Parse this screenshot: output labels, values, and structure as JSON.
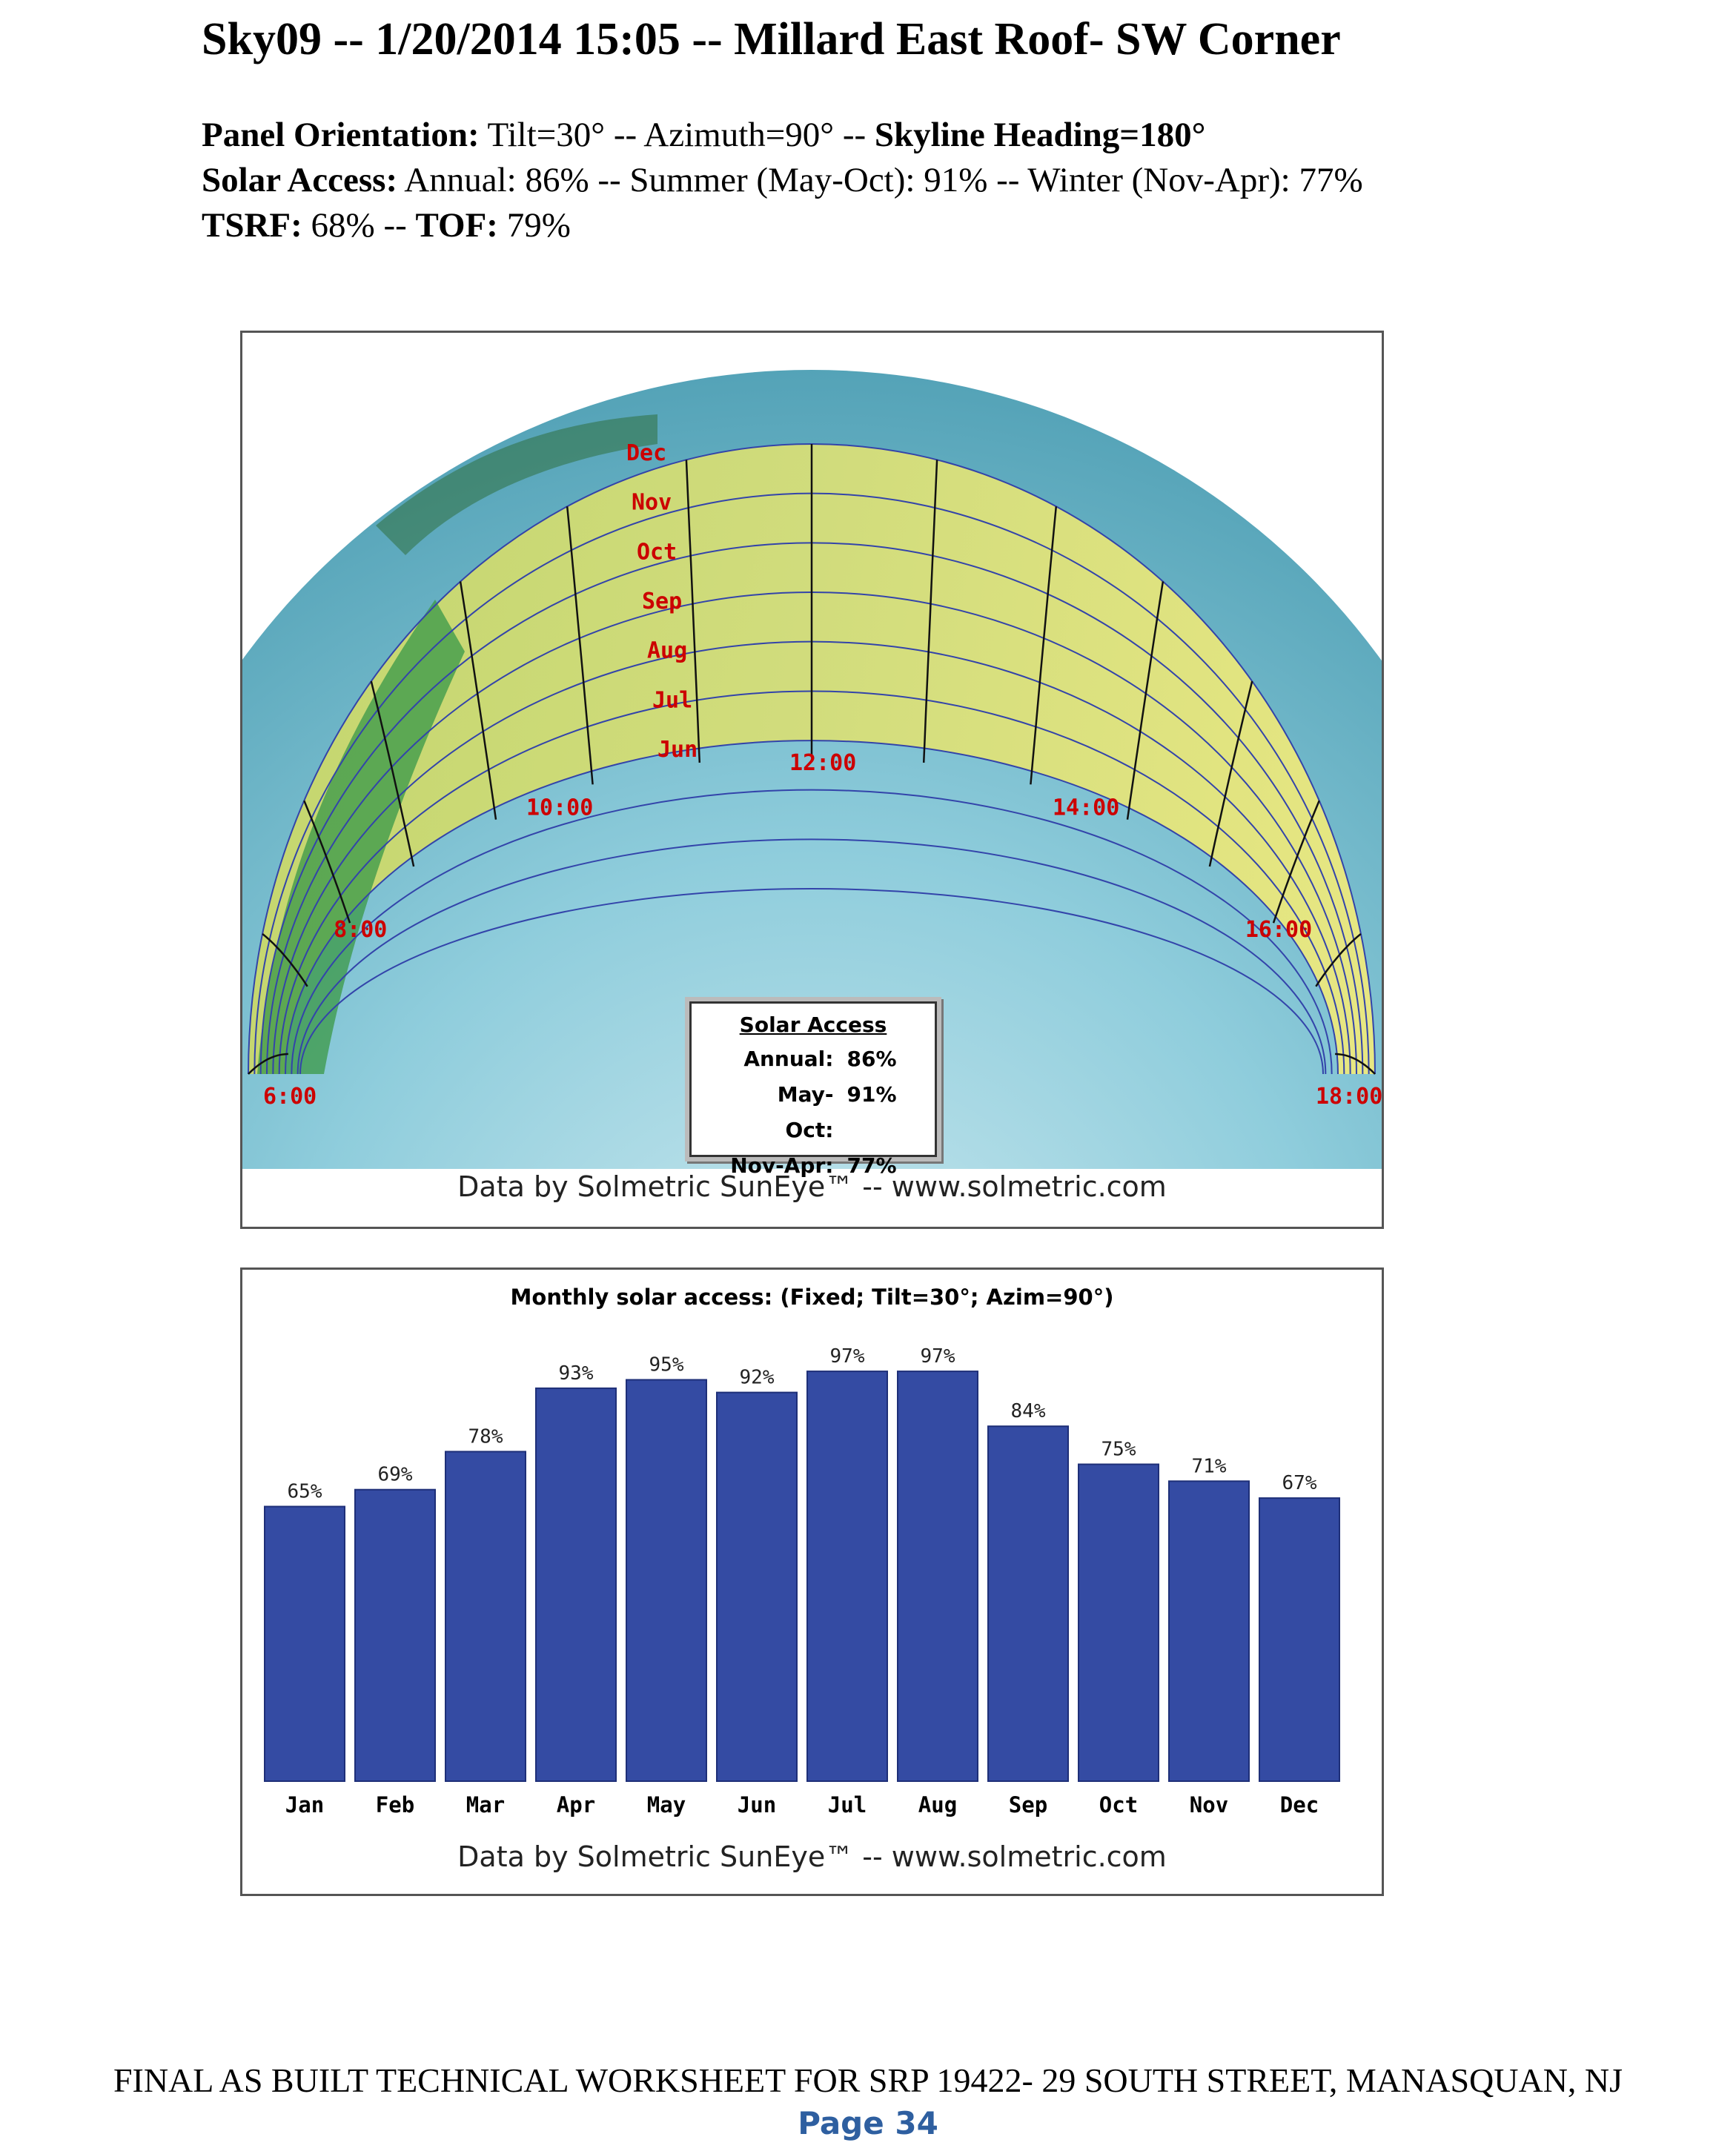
{
  "header": {
    "title": "Sky09 -- 1/20/2014 15:05 -- Millard East Roof- SW Corner",
    "orientation_label": "Panel Orientation:",
    "orientation_value": " Tilt=30° -- Azimuth=90° -- ",
    "skyline_label": "Skyline Heading=180°",
    "solar_access_label": "Solar Access:",
    "solar_access_value": " Annual: 86% -- Summer (May-Oct): 91% -- Winter (Nov-Apr): 77%",
    "tsrf_label": "TSRF:",
    "tsrf_value": " 68% -- ",
    "tof_label": "TOF:",
    "tof_value": " 79%"
  },
  "sky_chart": {
    "month_labels": [
      "Dec",
      "Nov",
      "Oct",
      "Sep",
      "Aug",
      "Jul",
      "Jun"
    ],
    "hour_labels": [
      "6:00",
      "8:00",
      "10:00",
      "12:00",
      "14:00",
      "16:00",
      "18:00"
    ],
    "box_title": "Solar Access",
    "box_rows": [
      {
        "label": "Annual:",
        "value": "86%"
      },
      {
        "label": "May-Oct:",
        "value": "91%"
      },
      {
        "label": "Nov-Apr:",
        "value": "77%"
      }
    ],
    "credit": "Data by Solmetric SunEye™ -- www.solmetric.com",
    "colors": {
      "sky": "#7fc6d6",
      "band": "#e8e57a",
      "tree": "#3e9a4a",
      "grid": "#3344aa",
      "label": "#cc0000"
    }
  },
  "chart_data": {
    "type": "bar",
    "title": "Monthly solar access: (Fixed; Tilt=30°; Azim=90°)",
    "categories": [
      "Jan",
      "Feb",
      "Mar",
      "Apr",
      "May",
      "Jun",
      "Jul",
      "Aug",
      "Sep",
      "Oct",
      "Nov",
      "Dec"
    ],
    "values": [
      65,
      69,
      78,
      93,
      95,
      92,
      97,
      97,
      84,
      75,
      71,
      67
    ],
    "value_labels": [
      "65%",
      "69%",
      "78%",
      "93%",
      "95%",
      "92%",
      "97%",
      "97%",
      "84%",
      "75%",
      "71%",
      "67%"
    ],
    "ylim": [
      0,
      100
    ],
    "bar_color": "#344ba3",
    "credit": "Data by Solmetric SunEye™ -- www.solmetric.com"
  },
  "footer": {
    "text": "FINAL AS BUILT TECHNICAL WORKSHEET FOR SRP 19422-   29 SOUTH STREET, MANASQUAN, NJ",
    "page": "Page 34"
  }
}
